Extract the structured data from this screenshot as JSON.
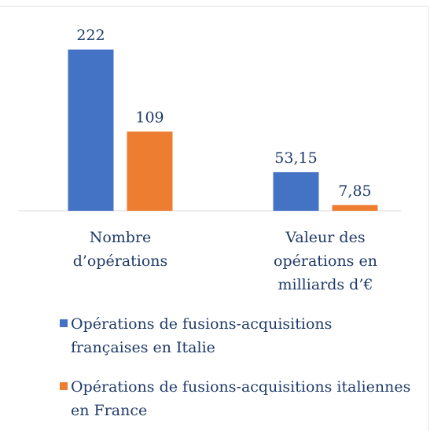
{
  "chart_data": {
    "type": "bar",
    "categories": [
      "Nombre d’opérations",
      "Valeur des opérations en milliards d’€"
    ],
    "series": [
      {
        "name": "Opérations de fusions-acquisitions françaises en Italie",
        "color": "#4472c4",
        "values": [
          222,
          53.15
        ],
        "value_labels": [
          "222",
          "53,15"
        ]
      },
      {
        "name": "Opérations de fusions-acquisitions italiennes en France",
        "color": "#ed7d31",
        "values": [
          109,
          7.85
        ],
        "value_labels": [
          "109",
          "7,85"
        ]
      }
    ]
  }
}
